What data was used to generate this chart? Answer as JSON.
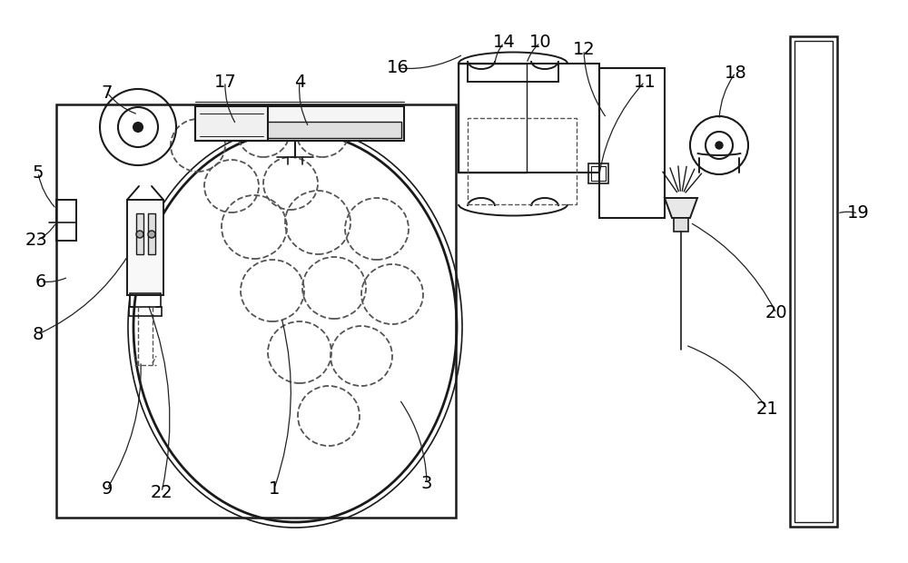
{
  "bg_color": "#ffffff",
  "lc": "#1a1a1a",
  "dc": "#555555",
  "figsize": [
    10.0,
    6.2
  ],
  "dpi": 100
}
